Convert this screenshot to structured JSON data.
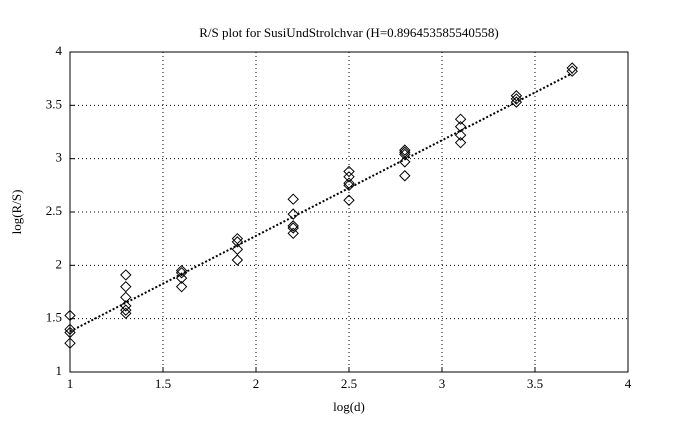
{
  "chart_data": {
    "type": "scatter",
    "title": "R/S plot for SusiUndStrolchvar (H=0.896453585540558)",
    "x_label": "log(d)",
    "y_label": "log(R/S)",
    "points": {
      "x": [
        1,
        1,
        1,
        1,
        1.3,
        1.3,
        1.3,
        1.3,
        1.3,
        1.3,
        1.6,
        1.6,
        1.6,
        1.6,
        1.9,
        1.9,
        1.9,
        1.9,
        2.2,
        2.2,
        2.2,
        2.2,
        2.2,
        2.5,
        2.5,
        2.5,
        2.5,
        2.5,
        2.8,
        2.8,
        2.8,
        2.8,
        2.8,
        3.1,
        3.1,
        3.1,
        3.1,
        3.4,
        3.4,
        3.4,
        3.7,
        3.7
      ],
      "y": [
        1.53,
        1.4,
        1.37,
        1.27,
        1.91,
        1.8,
        1.7,
        1.62,
        1.58,
        1.55,
        1.95,
        1.93,
        1.88,
        1.8,
        2.25,
        2.22,
        2.15,
        2.05,
        2.62,
        2.48,
        2.37,
        2.35,
        2.3,
        2.88,
        2.83,
        2.77,
        2.75,
        2.61,
        3.08,
        3.06,
        3.04,
        2.97,
        2.84,
        3.37,
        3.3,
        3.22,
        3.15,
        3.59,
        3.56,
        3.53,
        3.85,
        3.82
      ]
    },
    "fit": {
      "x": [
        1,
        3.7
      ],
      "y": [
        1.38,
        3.8
      ]
    },
    "xlim": [
      1,
      4
    ],
    "ylim": [
      1,
      4
    ],
    "xticks": [
      1,
      1.5,
      2,
      2.5,
      3,
      3.5,
      4
    ],
    "yticks": [
      1,
      1.5,
      2,
      2.5,
      3,
      3.5,
      4
    ],
    "grid": true,
    "color": "#000000"
  }
}
